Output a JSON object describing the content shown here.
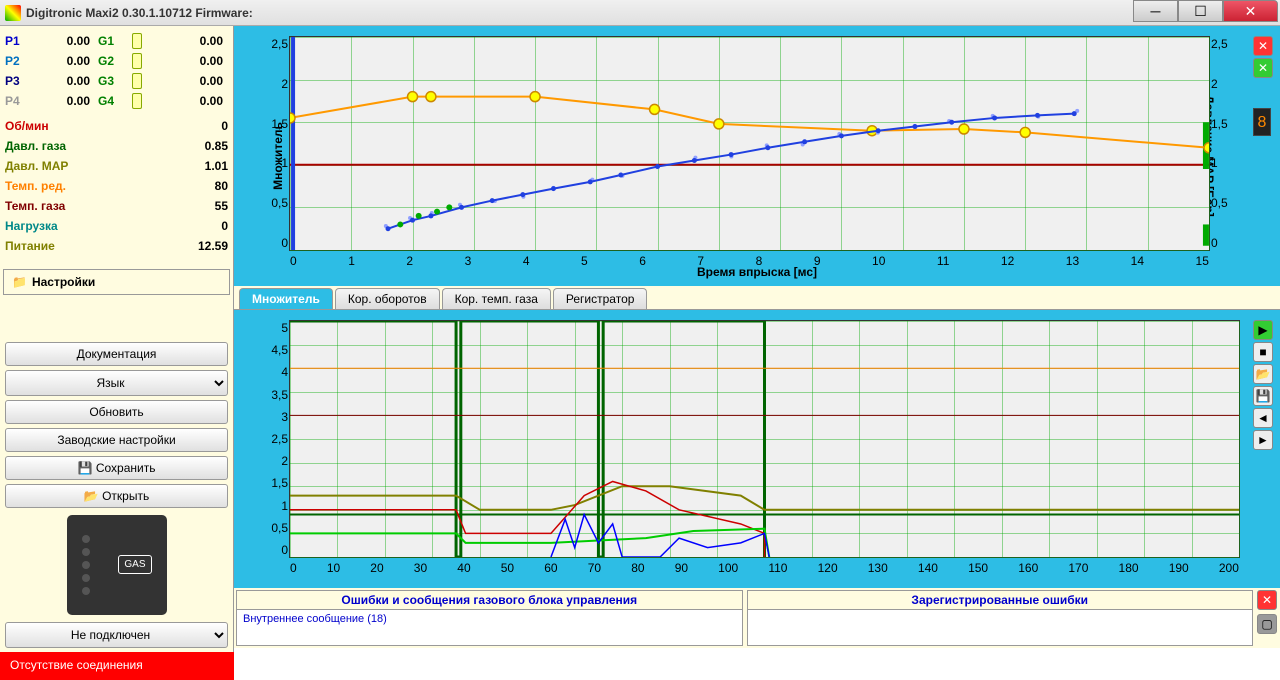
{
  "window": {
    "title": "Digitronic Maxi2 0.30.1.10712 Firmware:"
  },
  "colors": {
    "cyan_bg": "#2dbde5",
    "cream": "#fffce0",
    "p1": "#0000cc",
    "p2": "#0070c0",
    "p3": "#000080",
    "p4": "#999999",
    "g": "#008000",
    "obmin": "#cc0000",
    "davgaz": "#006400",
    "davmap": "#808000",
    "tempred": "#ff8000",
    "tempgaz": "#800000",
    "nagruzka": "#008888",
    "pitanie": "#808000",
    "orange_line": "#ff9900",
    "blue_line": "#2040e0",
    "red_line": "#aa0000",
    "green_line": "#00aa00",
    "darkred": "#880000"
  },
  "pgrows": [
    {
      "p": "P1",
      "pc": "#0000cc",
      "pv": "0.00",
      "g": "G1",
      "gv": "0.00"
    },
    {
      "p": "P2",
      "pc": "#0070c0",
      "pv": "0.00",
      "g": "G2",
      "gv": "0.00"
    },
    {
      "p": "P3",
      "pc": "#000080",
      "pv": "0.00",
      "g": "G3",
      "gv": "0.00"
    },
    {
      "p": "P4",
      "pc": "#999999",
      "pv": "0.00",
      "g": "G4",
      "gv": "0.00"
    }
  ],
  "readings": [
    {
      "label": "Об/мин",
      "value": "0",
      "color": "#cc0000"
    },
    {
      "label": "Давл. газа",
      "value": "0.85",
      "color": "#006400"
    },
    {
      "label": "Давл. MAP",
      "value": "1.01",
      "color": "#808000"
    },
    {
      "label": "Темп. ред.",
      "value": "80",
      "color": "#ff8000"
    },
    {
      "label": "Темп. газа",
      "value": "55",
      "color": "#800000"
    },
    {
      "label": "Нагрузка",
      "value": "0",
      "color": "#008888"
    },
    {
      "label": "Питание",
      "value": "12.59",
      "color": "#808000"
    }
  ],
  "settings_label": "Настройки",
  "left_buttons": {
    "doc": "Документация",
    "lang": "Язык",
    "refresh": "Обновить",
    "factory": "Заводские настройки",
    "save": "Сохранить",
    "open": "Открыть",
    "conn": "Не подключен"
  },
  "tabs": [
    {
      "label": "Множитель",
      "active": true
    },
    {
      "label": "Кор. оборотов",
      "active": false
    },
    {
      "label": "Кор. темп. газа",
      "active": false
    },
    {
      "label": "Регистратор",
      "active": false
    }
  ],
  "chart1": {
    "y1label": "Множитель",
    "y2label": "Давление MAP [Бар]",
    "xlabel": "Время впрыска [мс]",
    "xlim": [
      0,
      15
    ],
    "ylim": [
      0,
      2.5
    ],
    "xstep": 1,
    "ystep": 0.5,
    "xticks": [
      "0",
      "1",
      "2",
      "3",
      "4",
      "5",
      "6",
      "7",
      "8",
      "9",
      "10",
      "11",
      "12",
      "13",
      "14",
      "15"
    ],
    "yticks": [
      "0",
      "0,5",
      "1",
      "1,5",
      "2",
      "2,5"
    ],
    "orange": {
      "color": "#ff9900",
      "marker_fill": "#ffff00",
      "marker_stroke": "#cc8800",
      "width": 2,
      "points": [
        [
          0,
          1.55
        ],
        [
          2,
          1.8
        ],
        [
          2.3,
          1.8
        ],
        [
          4,
          1.8
        ],
        [
          5.95,
          1.65
        ],
        [
          7,
          1.48
        ],
        [
          9.5,
          1.4
        ],
        [
          11,
          1.42
        ],
        [
          12,
          1.38
        ],
        [
          15,
          1.2
        ]
      ]
    },
    "blue": {
      "color": "#2040e0",
      "marker_fill": "#2040e0",
      "width": 2,
      "points": [
        [
          1.6,
          0.25
        ],
        [
          2.0,
          0.35
        ],
        [
          2.3,
          0.4
        ],
        [
          2.8,
          0.5
        ],
        [
          3.3,
          0.58
        ],
        [
          3.8,
          0.65
        ],
        [
          4.3,
          0.72
        ],
        [
          4.9,
          0.8
        ],
        [
          5.4,
          0.88
        ],
        [
          6.0,
          0.98
        ],
        [
          6.6,
          1.05
        ],
        [
          7.2,
          1.12
        ],
        [
          7.8,
          1.2
        ],
        [
          8.4,
          1.27
        ],
        [
          9.0,
          1.34
        ],
        [
          9.6,
          1.4
        ],
        [
          10.2,
          1.45
        ],
        [
          10.8,
          1.5
        ],
        [
          11.5,
          1.55
        ],
        [
          12.2,
          1.58
        ],
        [
          12.8,
          1.6
        ]
      ]
    },
    "redline": {
      "y": 1.0,
      "color": "#aa0000",
      "width": 2
    }
  },
  "chart2": {
    "xlim": [
      0,
      200
    ],
    "ylim": [
      0,
      5
    ],
    "xstep": 10,
    "ystep": 0.5,
    "xticks": [
      "0",
      "10",
      "20",
      "30",
      "40",
      "50",
      "60",
      "70",
      "80",
      "90",
      "100",
      "110",
      "120",
      "130",
      "140",
      "150",
      "160",
      "170",
      "180",
      "190",
      "200"
    ],
    "yticks": [
      "0",
      "0,5",
      "1",
      "1,5",
      "2",
      "2,5",
      "3",
      "3,5",
      "4",
      "4,5",
      "5"
    ],
    "lines": [
      {
        "color": "#006400",
        "width": 3,
        "pts": [
          [
            0,
            5
          ],
          [
            35,
            5
          ],
          [
            35,
            0
          ],
          [
            36,
            0
          ],
          [
            36,
            5
          ],
          [
            65,
            5
          ],
          [
            65,
            0
          ],
          [
            66,
            0
          ],
          [
            66,
            5
          ],
          [
            100,
            5
          ],
          [
            100,
            0
          ]
        ]
      },
      {
        "color": "#ff8000",
        "width": 1,
        "pts": [
          [
            0,
            4
          ],
          [
            200,
            4
          ]
        ]
      },
      {
        "color": "#800000",
        "width": 1,
        "pts": [
          [
            0,
            3
          ],
          [
            200,
            3
          ]
        ]
      },
      {
        "color": "#808000",
        "width": 2,
        "pts": [
          [
            0,
            1.3
          ],
          [
            35,
            1.3
          ],
          [
            40,
            1
          ],
          [
            55,
            1
          ],
          [
            60,
            1.1
          ],
          [
            70,
            1.5
          ],
          [
            80,
            1.5
          ],
          [
            95,
            1.3
          ],
          [
            100,
            1
          ],
          [
            200,
            1
          ]
        ]
      },
      {
        "color": "#006400",
        "width": 2,
        "pts": [
          [
            0,
            0.9
          ],
          [
            200,
            0.9
          ]
        ]
      },
      {
        "color": "#cc0000",
        "width": 1.5,
        "pts": [
          [
            0,
            1
          ],
          [
            35,
            1
          ],
          [
            37,
            0.5
          ],
          [
            55,
            0.5
          ],
          [
            62,
            1.3
          ],
          [
            68,
            1.6
          ],
          [
            75,
            1.4
          ],
          [
            82,
            1
          ],
          [
            95,
            0.7
          ],
          [
            100,
            0.5
          ],
          [
            100,
            0
          ]
        ]
      },
      {
        "color": "#00cc00",
        "width": 2,
        "pts": [
          [
            0,
            0.5
          ],
          [
            35,
            0.5
          ],
          [
            37,
            0.3
          ],
          [
            55,
            0.3
          ],
          [
            75,
            0.4
          ],
          [
            85,
            0.55
          ],
          [
            100,
            0.6
          ],
          [
            101,
            0
          ]
        ]
      },
      {
        "color": "#0000ff",
        "width": 1.5,
        "pts": [
          [
            55,
            0
          ],
          [
            58,
            0.8
          ],
          [
            60,
            0.2
          ],
          [
            62,
            0.9
          ],
          [
            65,
            0.3
          ],
          [
            68,
            0.7
          ],
          [
            70,
            0
          ],
          [
            78,
            0
          ],
          [
            82,
            0.4
          ],
          [
            88,
            0.2
          ],
          [
            95,
            0.3
          ],
          [
            100,
            0.5
          ],
          [
            101,
            0
          ]
        ]
      }
    ]
  },
  "messages": {
    "head1": "Ошибки и сообщения газового блока управления",
    "head2": "Зарегистрированные ошибки",
    "inner": "Внутреннее сообщение (18)"
  },
  "footer_error": "Отсутствие соединения"
}
